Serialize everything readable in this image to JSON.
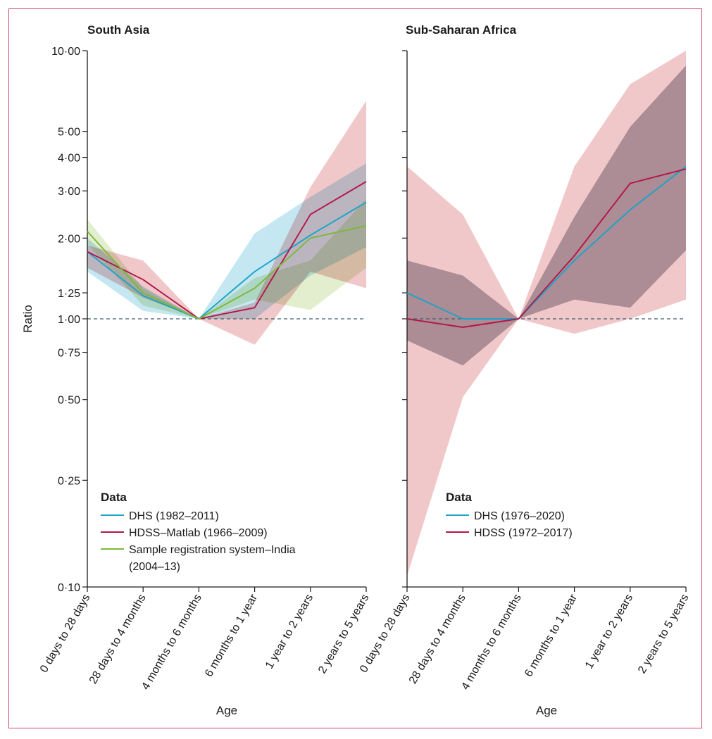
{
  "figure": {
    "ylabel": "Ratio",
    "xlabel": "Age"
  },
  "chart_data": [
    {
      "type": "line",
      "title": "South Asia",
      "xlabel": "Age",
      "ylabel": "Ratio",
      "yscale": "log",
      "ylim": [
        0.1,
        10.0
      ],
      "yticks": [
        0.1,
        0.25,
        0.5,
        0.75,
        1.0,
        1.25,
        2.0,
        3.0,
        4.0,
        5.0,
        10.0
      ],
      "ytick_labels": [
        "0·10",
        "0·25",
        "0·50",
        "0·75",
        "1·00",
        "1·25",
        "2·00",
        "3·00",
        "4·00",
        "5·00",
        "10·00"
      ],
      "reference_line": 1.0,
      "categories": [
        "0 days to 28 days",
        "28 days to 4 months",
        "4 months to 6 months",
        "6 months to 1 year",
        "1 year to 2 years",
        "2 years to 5 years"
      ],
      "legend_title": "Data",
      "series": [
        {
          "name": "DHS (1982–2011)",
          "color": "#1ba3c9",
          "band_color": "#9fd7ea",
          "values": [
            1.78,
            1.22,
            1.0,
            1.5,
            2.05,
            2.72
          ],
          "lower": [
            1.5,
            1.07,
            1.0,
            1.0,
            1.45,
            1.85
          ],
          "upper": [
            2.0,
            1.32,
            1.0,
            2.08,
            2.85,
            3.8
          ]
        },
        {
          "name": "HDSS–Matlab (1966–2009)",
          "color": "#b2164a",
          "band_color": "#e8a3a6",
          "values": [
            1.78,
            1.4,
            1.0,
            1.1,
            2.45,
            3.25
          ],
          "lower": [
            1.55,
            1.2,
            1.0,
            0.8,
            1.5,
            1.3
          ],
          "upper": [
            1.88,
            1.65,
            1.0,
            1.15,
            3.1,
            6.5
          ]
        },
        {
          "name": "Sample registration system–India (2004–13)",
          "color": "#7cb83a",
          "band_color": "#cfe3ad",
          "values": [
            2.12,
            1.25,
            1.0,
            1.3,
            2.0,
            2.22
          ],
          "lower": [
            1.9,
            1.12,
            1.0,
            1.18,
            1.08,
            1.55
          ],
          "upper": [
            2.35,
            1.3,
            1.0,
            1.42,
            1.65,
            2.8
          ]
        }
      ]
    },
    {
      "type": "line",
      "title": "Sub-Saharan Africa",
      "xlabel": "Age",
      "yscale": "log",
      "ylim": [
        0.1,
        10.0
      ],
      "reference_line": 1.0,
      "categories": [
        "0 days to 28 days",
        "28 days to 4 months",
        "4 months to 6 months",
        "6 months to 1 year",
        "1 year to 2 years",
        "2 years to 5 years"
      ],
      "legend_title": "Data",
      "series": [
        {
          "name": "DHS (1976–2020)",
          "color": "#1ba3c9",
          "band_color": "#a9a6b0",
          "values": [
            1.25,
            1.0,
            1.0,
            1.65,
            2.55,
            3.7
          ],
          "lower": [
            0.83,
            0.67,
            1.0,
            1.18,
            1.1,
            1.8
          ],
          "upper": [
            1.65,
            1.45,
            1.0,
            2.4,
            5.2,
            8.8
          ]
        },
        {
          "name": "HDSS (1972–2017)",
          "color": "#b2164a",
          "band_color": "#e8a3a6",
          "values": [
            1.0,
            0.93,
            1.0,
            1.72,
            3.2,
            3.62
          ],
          "lower": [
            0.11,
            0.51,
            1.0,
            0.88,
            1.0,
            1.18
          ],
          "upper": [
            3.7,
            2.45,
            1.0,
            3.7,
            7.5,
            10.0
          ]
        }
      ]
    }
  ]
}
